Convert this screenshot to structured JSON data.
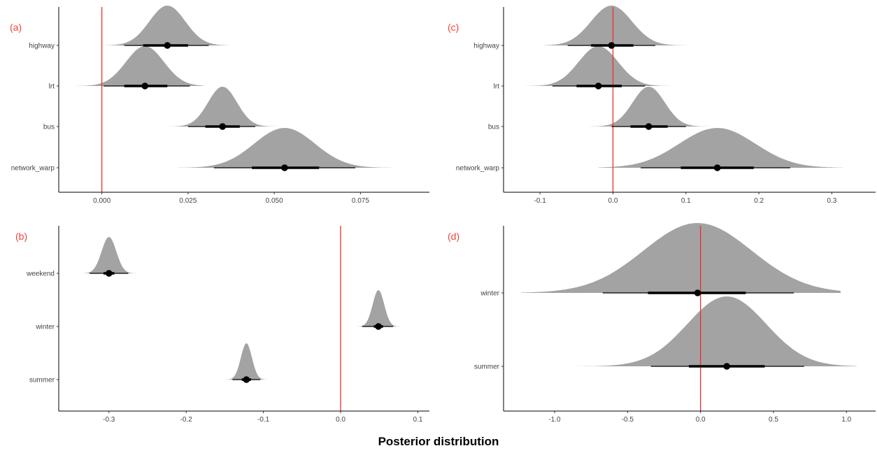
{
  "figure": {
    "xlabel": "Posterior distribution"
  },
  "colors": {
    "density": "#a3a3a3",
    "refline": "#e8302a",
    "panel_letter": "#f0453c",
    "interval": "#000000"
  },
  "chart_data": [
    {
      "panel": "(a)",
      "type": "density-interval",
      "xlim": [
        -0.0125,
        0.095
      ],
      "xticks": [
        0.0,
        0.025,
        0.05,
        0.075
      ],
      "xtick_labels": [
        "0.000",
        "0.025",
        "0.050",
        "0.075"
      ],
      "ref_line": 0,
      "categories": [
        "highway",
        "lrt",
        "bus",
        "network_warp"
      ],
      "series": [
        {
          "category": "highway",
          "median": 0.019,
          "q66": [
            0.012,
            0.025
          ],
          "q95": [
            0.0065,
            0.031
          ],
          "range": [
            -0.0005,
            0.0365
          ],
          "sd": 0.0052
        },
        {
          "category": "lrt",
          "median": 0.0125,
          "q66": [
            0.0065,
            0.019
          ],
          "q95": [
            0.0005,
            0.0255
          ],
          "range": [
            -0.0075,
            0.0295
          ],
          "sd": 0.0055
        },
        {
          "category": "bus",
          "median": 0.035,
          "q66": [
            0.03,
            0.04
          ],
          "q95": [
            0.025,
            0.0445
          ],
          "range": [
            0.018,
            0.051
          ],
          "sd": 0.0042
        },
        {
          "category": "network_warp",
          "median": 0.053,
          "q66": [
            0.0435,
            0.063
          ],
          "q95": [
            0.0325,
            0.0735
          ],
          "range": [
            0.022,
            0.0845
          ],
          "sd": 0.0088
        }
      ]
    },
    {
      "panel": "(b)",
      "type": "density-interval",
      "xlim": [
        -0.365,
        0.115
      ],
      "xticks": [
        -0.3,
        -0.2,
        -0.1,
        0.0,
        0.1
      ],
      "xtick_labels": [
        "-0.3",
        "-0.2",
        "-0.1",
        "0.0",
        "0.1"
      ],
      "ref_line": 0,
      "categories": [
        "weekend",
        "winter",
        "summer"
      ],
      "series": [
        {
          "category": "weekend",
          "median": -0.3,
          "q66": [
            -0.307,
            -0.293
          ],
          "q95": [
            -0.325,
            -0.275
          ],
          "range": [
            -0.35,
            -0.25
          ],
          "sd": 0.0095
        },
        {
          "category": "winter",
          "median": 0.049,
          "q66": [
            0.043,
            0.055
          ],
          "q95": [
            0.028,
            0.068
          ],
          "range": [
            0.015,
            0.082
          ],
          "sd": 0.0075
        },
        {
          "category": "summer",
          "median": -0.122,
          "q66": [
            -0.128,
            -0.116
          ],
          "q95": [
            -0.14,
            -0.104
          ],
          "range": [
            -0.155,
            -0.09
          ],
          "sd": 0.0072
        }
      ]
    },
    {
      "panel": "(c)",
      "type": "density-interval",
      "xlim": [
        -0.15,
        0.36
      ],
      "xticks": [
        -0.1,
        0.0,
        0.1,
        0.2,
        0.3
      ],
      "xtick_labels": [
        "-0.1",
        "0.0",
        "0.1",
        "0.2",
        "0.3"
      ],
      "ref_line": 0,
      "categories": [
        "highway",
        "lrt",
        "bus",
        "network_warp"
      ],
      "series": [
        {
          "category": "highway",
          "median": -0.002,
          "q66": [
            -0.03,
            0.028
          ],
          "q95": [
            -0.062,
            0.058
          ],
          "range": [
            -0.095,
            0.112
          ],
          "sd": 0.028
        },
        {
          "category": "lrt",
          "median": -0.02,
          "q66": [
            -0.05,
            0.012
          ],
          "q95": [
            -0.083,
            0.044
          ],
          "range": [
            -0.125,
            0.088
          ],
          "sd": 0.027
        },
        {
          "category": "bus",
          "median": 0.049,
          "q66": [
            0.024,
            0.075
          ],
          "q95": [
            -0.002,
            0.1
          ],
          "range": [
            -0.035,
            0.135
          ],
          "sd": 0.022
        },
        {
          "category": "network_warp",
          "median": 0.143,
          "q66": [
            0.093,
            0.193
          ],
          "q95": [
            0.038,
            0.243
          ],
          "range": [
            -0.02,
            0.315
          ],
          "sd": 0.052
        }
      ]
    },
    {
      "panel": "(d)",
      "type": "density-interval",
      "xlim": [
        -1.35,
        1.2
      ],
      "xticks": [
        -1.0,
        -0.5,
        0.0,
        0.5,
        1.0
      ],
      "xtick_labels": [
        "-1.0",
        "-0.5",
        "0.0",
        "0.5",
        "1.0"
      ],
      "ref_line": 0,
      "categories": [
        "winter",
        "summer"
      ],
      "series": [
        {
          "category": "winter",
          "median": -0.02,
          "q66": [
            -0.36,
            0.31
          ],
          "q95": [
            -0.67,
            0.64
          ],
          "range": [
            -1.23,
            0.96
          ],
          "sd": 0.37
        },
        {
          "category": "summer",
          "median": 0.18,
          "q66": [
            -0.08,
            0.44
          ],
          "q95": [
            -0.34,
            0.71
          ],
          "range": [
            -0.88,
            1.07
          ],
          "sd": 0.27
        }
      ]
    }
  ]
}
